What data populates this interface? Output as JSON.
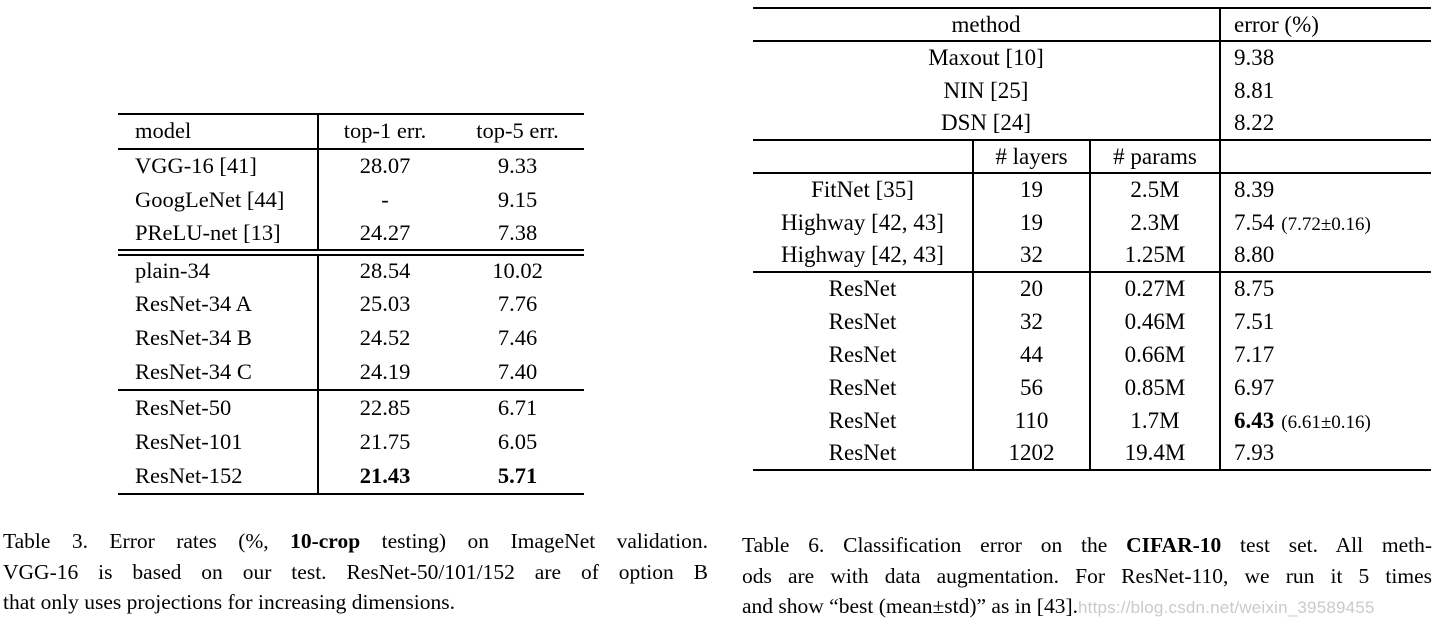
{
  "table3": {
    "col_headers": [
      "model",
      "top-1 err.",
      "top-5 err."
    ],
    "rows": [
      {
        "model": "VGG-16 [41]",
        "top1": "28.07",
        "top5": "9.33"
      },
      {
        "model": "GoogLeNet [44]",
        "top1": "-",
        "top5": "9.15"
      },
      {
        "model": "PReLU-net [13]",
        "top1": "24.27",
        "top5": "7.38"
      },
      {
        "model": "plain-34",
        "top1": "28.54",
        "top5": "10.02"
      },
      {
        "model": "ResNet-34 A",
        "top1": "25.03",
        "top5": "7.76"
      },
      {
        "model": "ResNet-34 B",
        "top1": "24.52",
        "top5": "7.46"
      },
      {
        "model": "ResNet-34 C",
        "top1": "24.19",
        "top5": "7.40"
      },
      {
        "model": "ResNet-50",
        "top1": "22.85",
        "top5": "6.71"
      },
      {
        "model": "ResNet-101",
        "top1": "21.75",
        "top5": "6.05"
      },
      {
        "model": "ResNet-152",
        "top1": "21.43",
        "top5": "5.71"
      }
    ],
    "caption": {
      "line1_pre": "Table 3. Error rates (%, ",
      "line1_bold": "10-crop",
      "line1_post": " testing) on ImageNet validation.",
      "line2": "VGG-16 is based on our test. ResNet-50/101/152 are of option B",
      "line3": "that only uses projections for increasing dimensions."
    }
  },
  "table6": {
    "header": {
      "method": "method",
      "error": "error (%)"
    },
    "sub_header": {
      "layers": "# layers",
      "params": "# params"
    },
    "top_rows": [
      {
        "method": "Maxout [10]",
        "error": "9.38"
      },
      {
        "method": "NIN [25]",
        "error": "8.81"
      },
      {
        "method": "DSN [24]",
        "error": "8.22"
      }
    ],
    "mid_rows": [
      {
        "method": "FitNet [35]",
        "layers": "19",
        "params": "2.5M",
        "error": "8.39",
        "error_note": ""
      },
      {
        "method": "Highway [42, 43]",
        "layers": "19",
        "params": "2.3M",
        "error": "7.54",
        "error_note": "(7.72±0.16)"
      },
      {
        "method": "Highway [42, 43]",
        "layers": "32",
        "params": "1.25M",
        "error": "8.80",
        "error_note": ""
      }
    ],
    "resnet_rows": [
      {
        "method": "ResNet",
        "layers": "20",
        "params": "0.27M",
        "error": "8.75",
        "error_note": ""
      },
      {
        "method": "ResNet",
        "layers": "32",
        "params": "0.46M",
        "error": "7.51",
        "error_note": ""
      },
      {
        "method": "ResNet",
        "layers": "44",
        "params": "0.66M",
        "error": "7.17",
        "error_note": ""
      },
      {
        "method": "ResNet",
        "layers": "56",
        "params": "0.85M",
        "error": "6.97",
        "error_note": ""
      },
      {
        "method": "ResNet",
        "layers": "110",
        "params": "1.7M",
        "error": "6.43",
        "error_note": "(6.61±0.16)"
      },
      {
        "method": "ResNet",
        "layers": "1202",
        "params": "19.4M",
        "error": "7.93",
        "error_note": ""
      }
    ],
    "caption": {
      "line1_pre": "Table 6. Classification error on the ",
      "line1_bold": "CIFAR-10",
      "line1_post": " test set. All meth-",
      "line2": "ods are with data augmentation. For ResNet-110, we run it 5 times",
      "line3": "and show “best (mean±std)” as in [43].",
      "watermark": "https://blog.csdn.net/weixin_39589455"
    }
  },
  "colors": {
    "text": "#000000",
    "rule": "#000000",
    "watermark_gray": "#c7cbce"
  }
}
